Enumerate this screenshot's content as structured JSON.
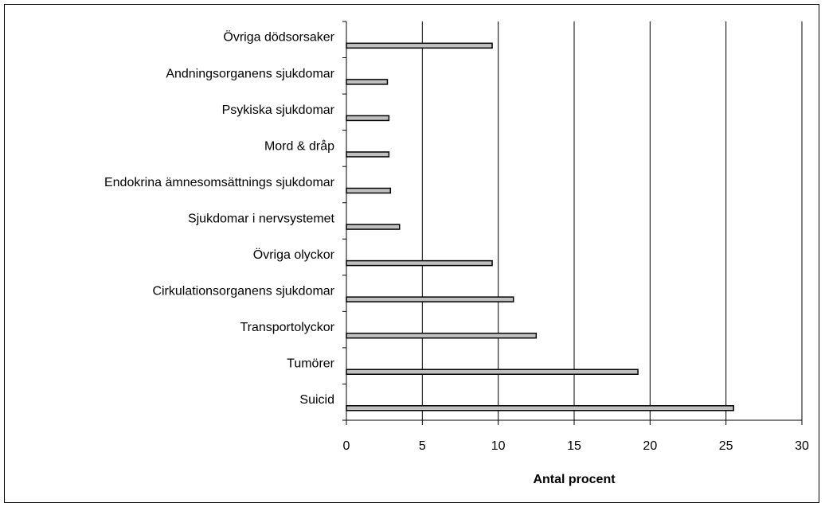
{
  "chart_data": {
    "type": "hbar",
    "x_label": "Antal procent",
    "categories": [
      "Övriga dödsorsaker",
      "Andningsorganens sjukdomar",
      "Psykiska sjukdomar",
      "Mord & dråp",
      "Endokrina ämnesomsättnings sjukdomar",
      "Sjukdomar i nervsystemet",
      "Övriga olyckor",
      "Cirkulationsorganens sjukdomar",
      "Transportolyckor",
      "Tumörer",
      "Suicid"
    ],
    "values": [
      9.6,
      2.7,
      2.8,
      2.8,
      2.9,
      3.5,
      9.6,
      11.0,
      12.5,
      19.2,
      25.5
    ],
    "color": "#c0c0c0",
    "xlim": [
      0,
      30
    ],
    "xticks": [
      0,
      5,
      10,
      15,
      20,
      25,
      30
    ],
    "grid": true
  }
}
